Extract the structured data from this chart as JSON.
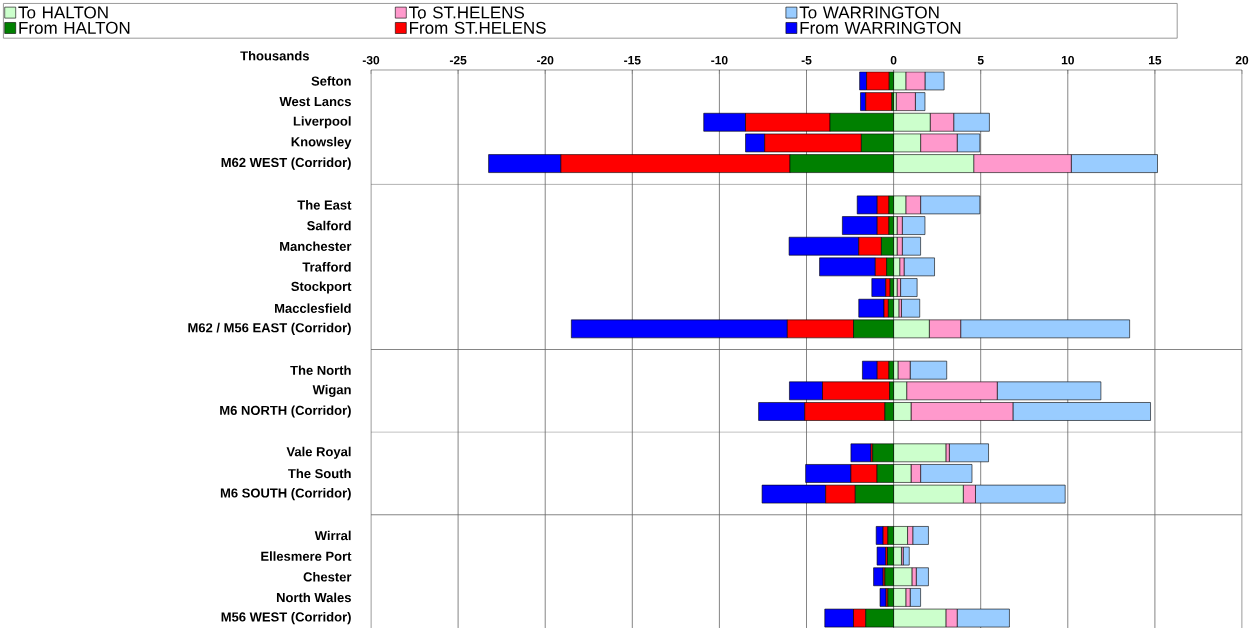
{
  "chart_data": {
    "type": "bar",
    "orientation": "horizontal",
    "stacked": true,
    "xlabel": "Thousands",
    "categories": [
      "Sefton",
      "West Lancs",
      "Liverpool",
      "Knowsley",
      "M62 WEST (Corridor)",
      null,
      "The East",
      "Salford",
      "Manchester",
      "Trafford",
      "Stockport",
      "Macclesfield",
      "M62 / M56 EAST (Corridor)",
      null,
      "The North",
      "Wigan",
      "M6 NORTH (Corridor)",
      null,
      "Vale Royal",
      "The South",
      "M6 SOUTH (Corridor)",
      null,
      "Wirral",
      "Ellesmere Port",
      "Chester",
      "North Wales",
      "M56 WEST (Corridor)"
    ],
    "series": [
      {
        "name": "To HALTON",
        "color": "#ccffcc",
        "values": [
          0.7,
          0.15,
          2.1,
          1.55,
          4.6,
          null,
          0.7,
          0.2,
          0.2,
          0.35,
          0.2,
          0.3,
          2.05,
          null,
          0.25,
          0.75,
          1.0,
          null,
          3.0,
          1.0,
          4.0,
          null,
          0.8,
          0.45,
          1.05,
          0.7,
          3.0
        ]
      },
      {
        "name": "To ST.HELENS",
        "color": "#ff99cc",
        "values": [
          1.1,
          1.1,
          1.35,
          2.1,
          5.6,
          null,
          0.85,
          0.3,
          0.3,
          0.25,
          0.2,
          0.15,
          1.8,
          null,
          0.7,
          5.2,
          5.85,
          null,
          0.2,
          0.55,
          0.7,
          null,
          0.3,
          0.1,
          0.25,
          0.25,
          0.65
        ]
      },
      {
        "name": "To WARRINGTON",
        "color": "#99ccff",
        "values": [
          1.1,
          0.55,
          2.05,
          1.3,
          4.95,
          null,
          3.4,
          1.3,
          1.05,
          1.75,
          0.95,
          1.05,
          9.7,
          null,
          2.1,
          5.95,
          7.9,
          null,
          2.25,
          2.95,
          5.15,
          null,
          0.9,
          0.35,
          0.7,
          0.6,
          3.0
        ]
      },
      {
        "name": "From HALTON",
        "color": "#008000",
        "values": [
          -0.25,
          -0.1,
          -3.65,
          -1.85,
          -5.95,
          null,
          -0.27,
          -0.27,
          -0.7,
          -0.4,
          -0.2,
          -0.3,
          -2.3,
          null,
          -0.27,
          -0.23,
          -0.5,
          null,
          -1.2,
          -0.95,
          -2.2,
          null,
          -0.33,
          -0.35,
          -0.5,
          -0.33,
          -1.6
        ]
      },
      {
        "name": "From ST.HELENS",
        "color": "#ff0000",
        "values": [
          -1.3,
          -1.5,
          -4.85,
          -5.55,
          -13.15,
          null,
          -0.67,
          -0.67,
          -1.3,
          -0.65,
          -0.25,
          -0.25,
          -3.8,
          null,
          -0.67,
          -3.85,
          -4.6,
          null,
          -0.1,
          -1.5,
          -1.7,
          null,
          -0.27,
          -0.1,
          -0.1,
          -0.1,
          -0.7
        ]
      },
      {
        "name": "From WARRINGTON",
        "color": "#0000ff",
        "values": [
          -0.4,
          -0.3,
          -2.4,
          -1.1,
          -4.15,
          null,
          -1.15,
          -2.0,
          -4.0,
          -3.2,
          -0.8,
          -1.45,
          -12.4,
          null,
          -0.85,
          -1.9,
          -2.65,
          null,
          -1.15,
          -2.6,
          -3.65,
          null,
          -0.4,
          -0.5,
          -0.55,
          -0.35,
          -1.65
        ]
      }
    ],
    "xlim": [
      -30,
      20
    ],
    "xticks": [
      -30,
      -25,
      -20,
      -15,
      -10,
      -5,
      0,
      5,
      10,
      15,
      20
    ],
    "grid": true,
    "legend": "top"
  }
}
